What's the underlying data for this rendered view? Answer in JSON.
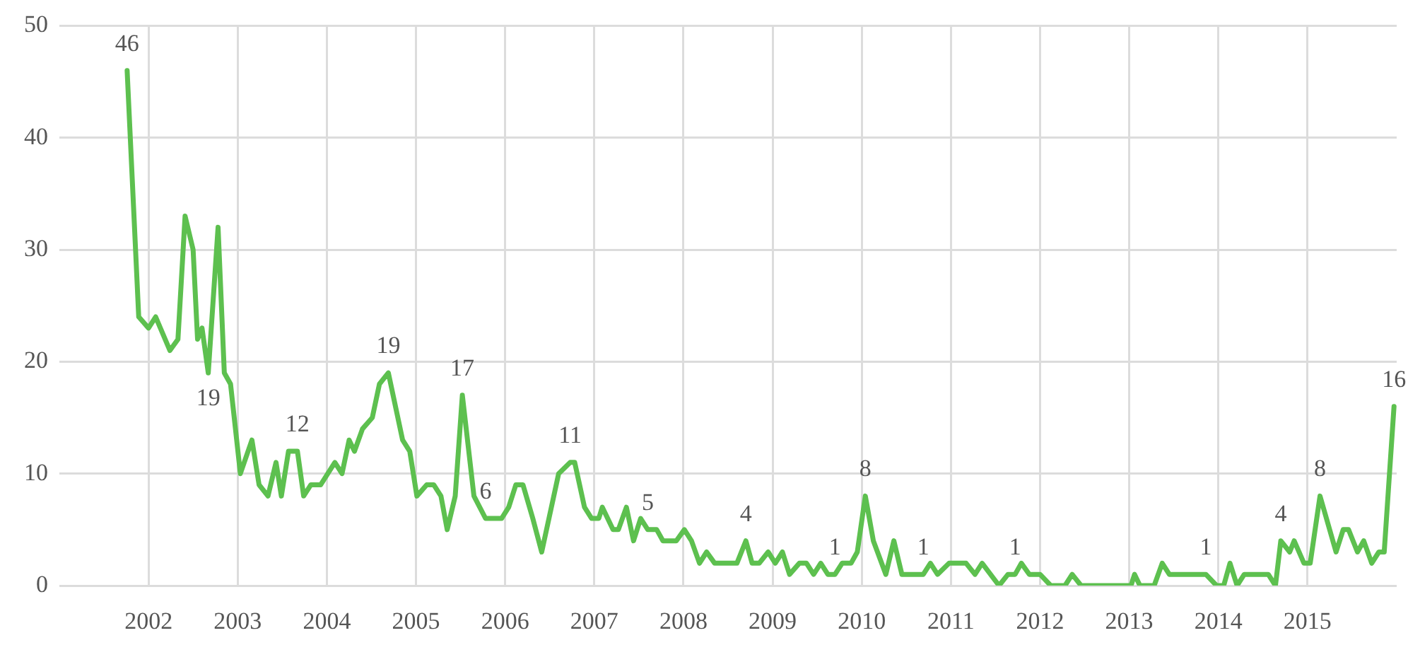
{
  "chart_data": {
    "type": "line",
    "x": [
      2001.76,
      2001.89,
      2002.0,
      2002.08,
      2002.24,
      2002.33,
      2002.41,
      2002.5,
      2002.55,
      2002.6,
      2002.67,
      2002.78,
      2002.85,
      2002.92,
      2003.03,
      2003.16,
      2003.24,
      2003.34,
      2003.43,
      2003.49,
      2003.57,
      2003.67,
      2003.74,
      2003.82,
      2003.93,
      2004.09,
      2004.17,
      2004.25,
      2004.31,
      2004.4,
      2004.51,
      2004.59,
      2004.69,
      2004.85,
      2004.93,
      2005.01,
      2005.12,
      2005.2,
      2005.28,
      2005.35,
      2005.44,
      2005.52,
      2005.65,
      2005.78,
      2005.88,
      2005.96,
      2006.04,
      2006.12,
      2006.2,
      2006.31,
      2006.41,
      2006.6,
      2006.73,
      2006.78,
      2006.89,
      2006.97,
      2007.05,
      2007.09,
      2007.21,
      2007.27,
      2007.36,
      2007.44,
      2007.52,
      2007.6,
      2007.7,
      2007.77,
      2007.92,
      2008.01,
      2008.09,
      2008.18,
      2008.26,
      2008.35,
      2008.6,
      2008.7,
      2008.77,
      2008.85,
      2008.95,
      2009.03,
      2009.11,
      2009.19,
      2009.3,
      2009.38,
      2009.46,
      2009.54,
      2009.62,
      2009.7,
      2009.78,
      2009.88,
      2009.95,
      2010.04,
      2010.13,
      2010.27,
      2010.36,
      2010.45,
      2010.69,
      2010.77,
      2010.85,
      2010.98,
      2011.17,
      2011.27,
      2011.35,
      2011.54,
      2011.64,
      2011.72,
      2011.79,
      2011.88,
      2012.0,
      2012.12,
      2012.28,
      2012.36,
      2012.46,
      2013.02,
      2013.06,
      2013.12,
      2013.28,
      2013.37,
      2013.45,
      2013.86,
      2013.98,
      2014.06,
      2014.13,
      2014.21,
      2014.29,
      2014.56,
      2014.64,
      2014.7,
      2014.8,
      2014.85,
      2014.96,
      2015.03,
      2015.14,
      2015.32,
      2015.4,
      2015.46,
      2015.56,
      2015.63,
      2015.72,
      2015.8,
      2015.86,
      2015.97
    ],
    "values": [
      46,
      24,
      23,
      24,
      21,
      22,
      33,
      30,
      22,
      23,
      19,
      32,
      19,
      18,
      10,
      13,
      9,
      8,
      11,
      8,
      12,
      12,
      8,
      9,
      9,
      11,
      10,
      13,
      12,
      14,
      15,
      18,
      19,
      13,
      12,
      8,
      9,
      9,
      8,
      5,
      8,
      17,
      8,
      6,
      6,
      6,
      7,
      9,
      9,
      6,
      3,
      10,
      11,
      11,
      7,
      6,
      6,
      7,
      5,
      5,
      7,
      4,
      6,
      5,
      5,
      4,
      4,
      5,
      4,
      2,
      3,
      2,
      2,
      4,
      2,
      2,
      3,
      2,
      3,
      1,
      2,
      2,
      1,
      2,
      1,
      1,
      2,
      2,
      3,
      8,
      4,
      1,
      4,
      1,
      1,
      2,
      1,
      2,
      2,
      1,
      2,
      0,
      1,
      1,
      2,
      1,
      1,
      0,
      0,
      1,
      0,
      0,
      1,
      0,
      0,
      2,
      1,
      1,
      0,
      0,
      2,
      0,
      1,
      1,
      0,
      4,
      3,
      4,
      2,
      2,
      8,
      3,
      5,
      5,
      3,
      4,
      2,
      3,
      3,
      16
    ],
    "color": "#5dc04f",
    "xlim": [
      2001,
      2016
    ],
    "xticks": [
      2002,
      2003,
      2004,
      2005,
      2006,
      2007,
      2008,
      2009,
      2010,
      2011,
      2012,
      2013,
      2014,
      2015
    ],
    "ylim": [
      0,
      50
    ],
    "yticks": [
      0,
      10,
      20,
      30,
      40,
      50
    ],
    "grid": true,
    "legend": false,
    "marker": "none",
    "line_style": "solid",
    "annotations": [
      {
        "text": "46",
        "x": 2001.76,
        "y": 46
      },
      {
        "text": "19",
        "x": 2002.67,
        "y": 19
      },
      {
        "text": "12",
        "x": 2003.67,
        "y": 12
      },
      {
        "text": "19",
        "x": 2004.69,
        "y": 19
      },
      {
        "text": "17",
        "x": 2005.52,
        "y": 17
      },
      {
        "text": "6",
        "x": 2005.78,
        "y": 6
      },
      {
        "text": "11",
        "x": 2006.73,
        "y": 11
      },
      {
        "text": "5",
        "x": 2007.6,
        "y": 5
      },
      {
        "text": "4",
        "x": 2008.7,
        "y": 4
      },
      {
        "text": "1",
        "x": 2009.7,
        "y": 1
      },
      {
        "text": "8",
        "x": 2010.04,
        "y": 8
      },
      {
        "text": "1",
        "x": 2010.69,
        "y": 1
      },
      {
        "text": "1",
        "x": 2011.72,
        "y": 1
      },
      {
        "text": "1",
        "x": 2013.86,
        "y": 1
      },
      {
        "text": "4",
        "x": 2014.7,
        "y": 4
      },
      {
        "text": "8",
        "x": 2015.14,
        "y": 8
      },
      {
        "text": "16",
        "x": 2015.97,
        "y": 16
      }
    ]
  }
}
